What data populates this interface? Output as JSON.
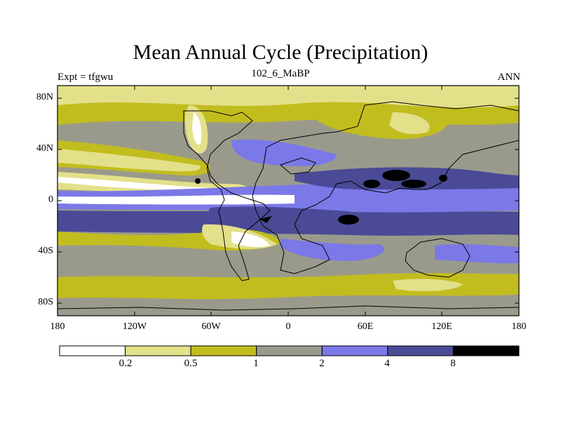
{
  "title": "Mean Annual Cycle (Precipitation)",
  "subtitle": "102_6_MaBP",
  "left_label": "Expt = tfgwu",
  "right_label": "ANN",
  "map": {
    "projection": "cylindrical equidistant",
    "lon_range": [
      -180,
      180
    ],
    "lat_range": [
      -90,
      90
    ],
    "y_ticks": [
      "80N",
      "40N",
      "0",
      "40S",
      "80S"
    ],
    "x_ticks": [
      "180",
      "120W",
      "60W",
      "0",
      "60E",
      "120E",
      "180"
    ]
  },
  "colorbar": {
    "levels": [
      "0.2",
      "0.5",
      "1",
      "2",
      "4",
      "8"
    ],
    "colors": [
      "#ffffff",
      "#e3e08a",
      "#c2bd1e",
      "#9a9a8c",
      "#7b78e8",
      "#4a4a96",
      "#000000"
    ]
  }
}
